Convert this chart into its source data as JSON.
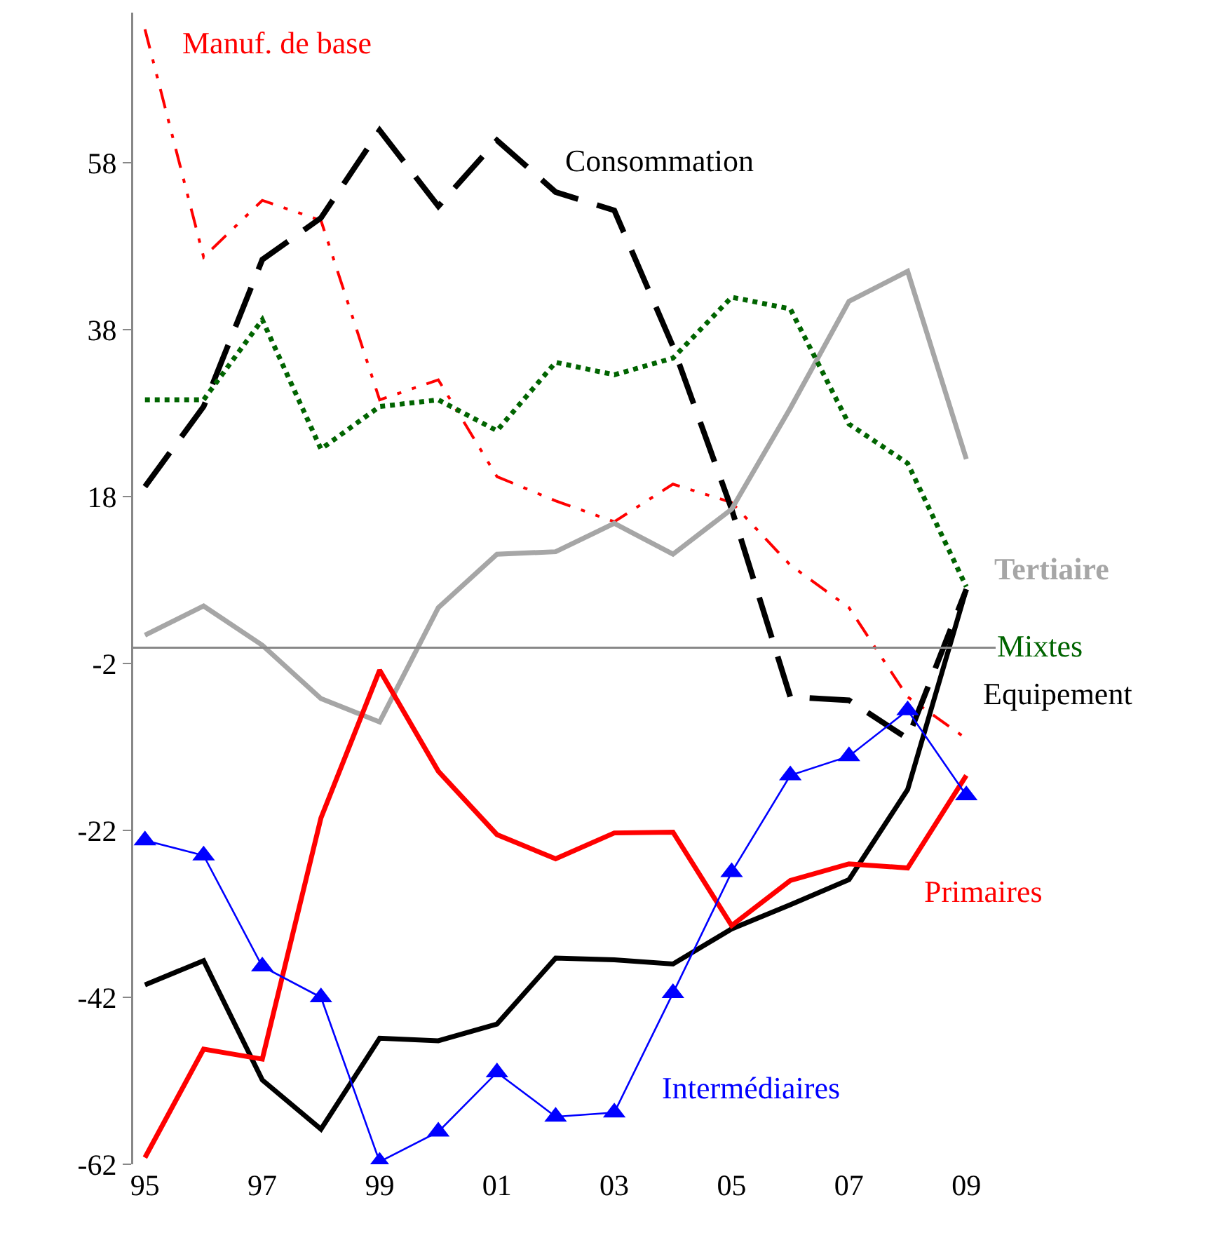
{
  "chart_data": {
    "type": "line",
    "categories": [
      "95",
      null,
      "97",
      null,
      "99",
      null,
      "01",
      null,
      "03",
      null,
      "05",
      null,
      "07",
      null,
      "09"
    ],
    "ylim": [
      -62,
      76
    ],
    "yticks": [
      -62,
      -42,
      -22,
      -2,
      18,
      38,
      58
    ],
    "grid": false,
    "legend": false,
    "series": [
      {
        "name": "Manuf. de base",
        "color": "#ff0000",
        "line_style": "dashdot",
        "marker": "none",
        "values": [
          74,
          46.7,
          53.5,
          51.1,
          29.6,
          32,
          20.4,
          17.5,
          15,
          19.5,
          17.3,
          9.8,
          4.7,
          -6,
          -11
        ]
      },
      {
        "name": "Consommation",
        "color": "#000000",
        "line_style": "dashed",
        "marker": "none",
        "values": [
          19.2,
          28.8,
          46.4,
          51.4,
          61.9,
          52.8,
          60.7,
          54.5,
          52.3,
          36,
          16.5,
          -6,
          -6.4,
          -11,
          6.9
        ]
      },
      {
        "name": "Tertiaire",
        "color": "#a6a6a6",
        "line_style": "solid",
        "marker": "none",
        "values": [
          1.4,
          4.9,
          0.2,
          -6.2,
          -9,
          4.7,
          11.1,
          11.4,
          14.8,
          11.1,
          16.5,
          28.6,
          41.4,
          45,
          22.5
        ]
      },
      {
        "name": "Mixtes",
        "color": "#006400",
        "line_style": "dotted",
        "marker": "none",
        "values": [
          29.6,
          29.6,
          39.2,
          23.7,
          28.8,
          29.6,
          25.9,
          34.1,
          32.6,
          34.6,
          41.9,
          40.5,
          26.7,
          22,
          7.2
        ]
      },
      {
        "name": "Equipement",
        "color": "#000000",
        "line_style": "solid",
        "marker": "none",
        "values": [
          -40.5,
          -37.6,
          -51.9,
          -57.8,
          -46.9,
          -47.2,
          -45.2,
          -37.3,
          -37.5,
          -38,
          -33.8,
          -30.9,
          -27.9,
          -17.1,
          6.9
        ]
      },
      {
        "name": "Primaires",
        "color": "#ff0000",
        "line_style": "solid",
        "marker": "none",
        "values": [
          -61.2,
          -48.2,
          -49.4,
          -20.5,
          -2.8,
          -14.9,
          -22.5,
          -25.4,
          -22.3,
          -22.2,
          -33.4,
          -28,
          -26,
          -26.5,
          -15.4
        ]
      },
      {
        "name": "Intermédiaires",
        "color": "#0000ff",
        "line_style": "solid",
        "marker": "triangle",
        "values": [
          -23.2,
          -25,
          -38.3,
          -42,
          -61.7,
          -58.1,
          -51,
          -56.3,
          -55.8,
          -41.5,
          -27,
          -15.4,
          -13.1,
          -7.6,
          -17.8
        ]
      }
    ]
  }
}
